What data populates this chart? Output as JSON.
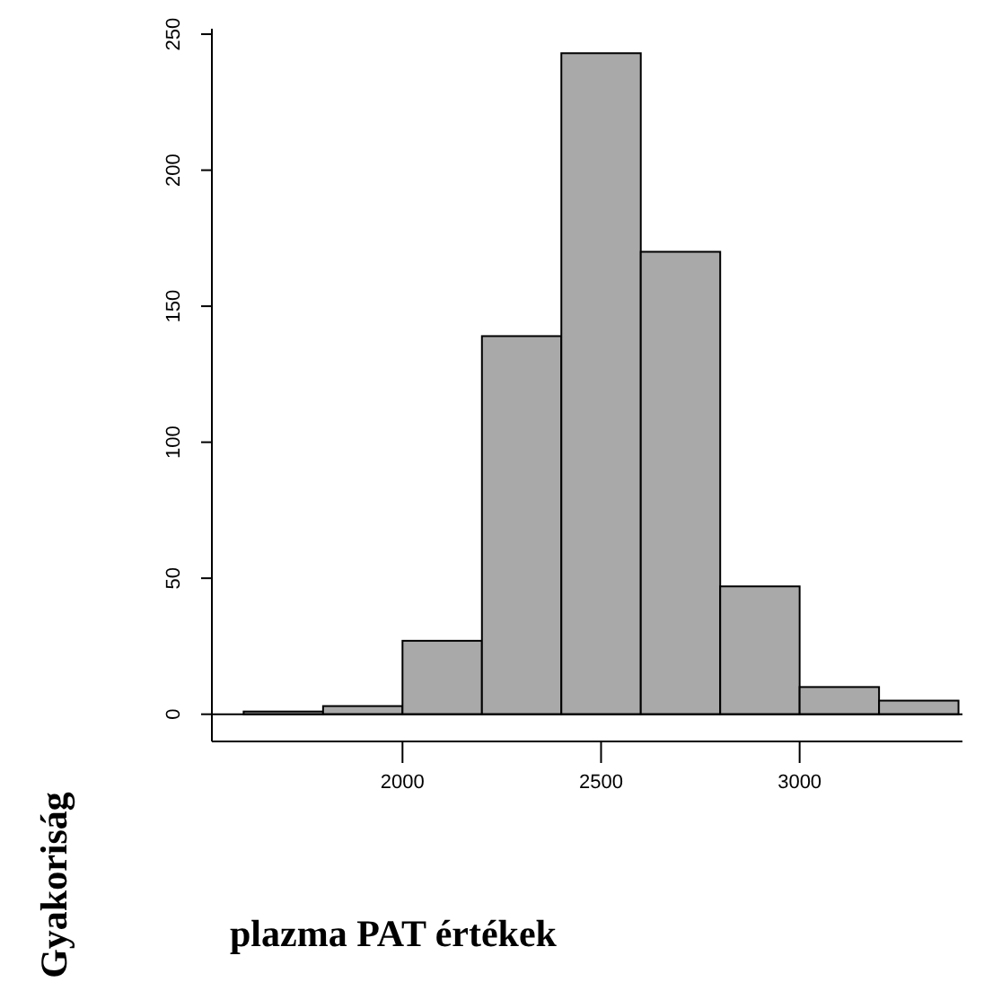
{
  "chart_data": {
    "type": "histogram",
    "xlabel": "plazma PAT értékek",
    "ylabel": "Gyakoriság",
    "bins": [
      1600,
      1800,
      2000,
      2200,
      2400,
      2600,
      2800,
      3000,
      3200,
      3400
    ],
    "values": [
      1,
      3,
      27,
      139,
      243,
      170,
      47,
      10,
      5
    ],
    "color": "#a9a9a9",
    "xlim": [
      1520,
      3410
    ],
    "xticks": [
      2000,
      2500,
      3000
    ],
    "ylim": [
      -10,
      252
    ],
    "yticks": [
      0,
      50,
      100,
      150,
      200,
      250
    ],
    "ref_lines": [
      {
        "axis": "y",
        "value": 0,
        "color": "#000000"
      }
    ],
    "grid": false,
    "legend": false
  }
}
